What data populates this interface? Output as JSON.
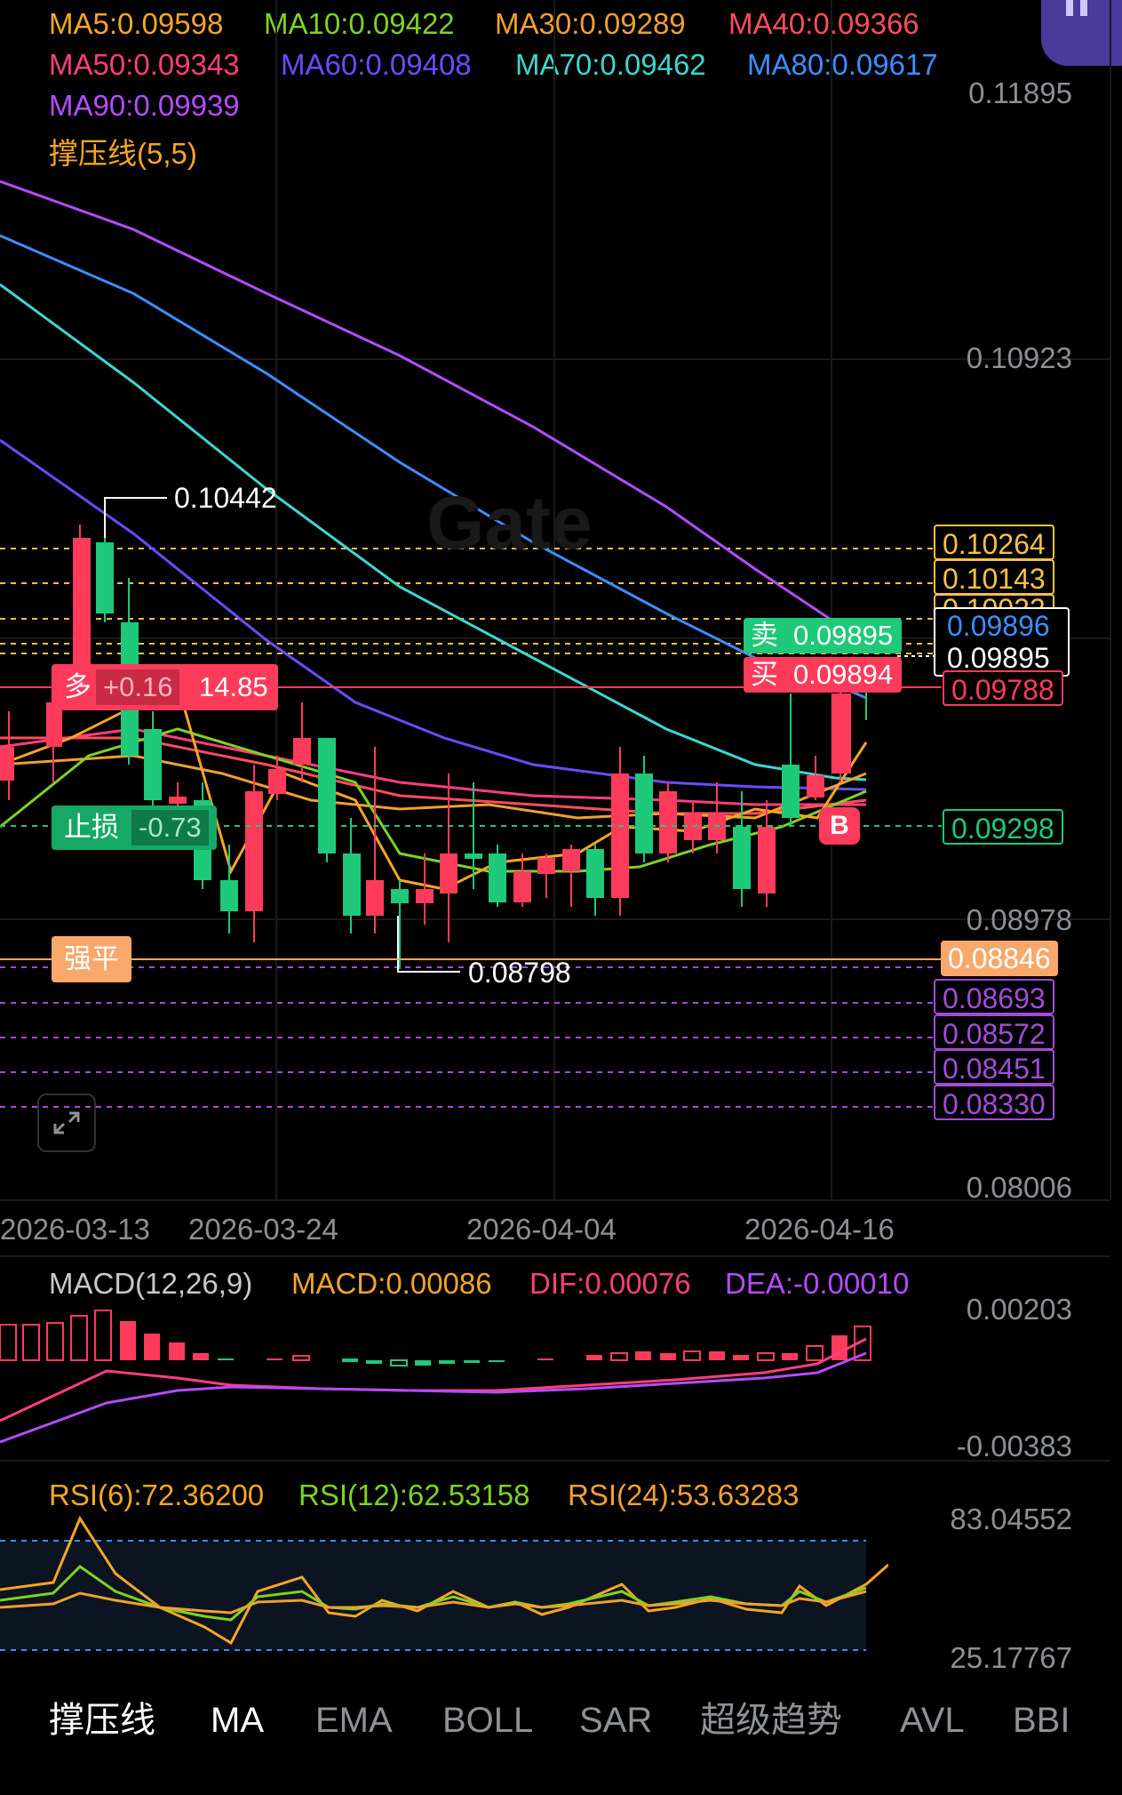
{
  "ma_legend": [
    {
      "label": "MA5:0.09598",
      "color": "#f5a623"
    },
    {
      "label": "MA10:0.09422",
      "color": "#7ed321"
    },
    {
      "label": "MA30:0.09289",
      "color": "#f0a030"
    },
    {
      "label": "MA40:0.09366",
      "color": "#ff4d5a"
    },
    {
      "label": "MA50:0.09343",
      "color": "#ff3d7f"
    },
    {
      "label": "MA60:0.09408",
      "color": "#6a4cff"
    },
    {
      "label": "MA70:0.09462",
      "color": "#3ed6d0"
    },
    {
      "label": "MA80:0.09617",
      "color": "#3b8fff"
    },
    {
      "label": "MA90:0.09939",
      "color": "#b44cff"
    },
    {
      "label": "撑压线(5,5)",
      "color": "#f5a623"
    }
  ],
  "price_axis": [
    "0.11895",
    "0.10923",
    "0.08978",
    "0.08006"
  ],
  "date_axis": [
    "2026-03-13",
    "2026-03-24",
    "2026-04-04",
    "2026-04-16"
  ],
  "annotations": {
    "high": "0.10442",
    "low": "0.08798"
  },
  "watermark": "Gate",
  "levels": {
    "resistance": [
      "0.10264",
      "0.10143",
      "0.10022"
    ],
    "last_blue": "0.09896",
    "last_white": "0.09895",
    "position_price": "0.09788",
    "stop_price": "0.09298",
    "liquidation_price": "0.08846",
    "support": [
      "0.08693",
      "0.08572",
      "0.08451",
      "0.08330"
    ]
  },
  "orderbook": {
    "sell_label": "卖",
    "sell_price": "0.09895",
    "buy_label": "买",
    "buy_price": "0.09894"
  },
  "position": {
    "side": "多",
    "pnl": "+0.16",
    "size": "14.85"
  },
  "stop_loss": {
    "label": "止损",
    "value": "-0.73"
  },
  "liquidation": {
    "label": "强平"
  },
  "buy_marker": "B",
  "macd": {
    "title": "MACD(12,26,9)",
    "macd": "MACD:0.00086",
    "dif": "DIF:0.00076",
    "dea": "DEA:-0.00010",
    "axis": [
      "0.00203",
      "-0.00383"
    ]
  },
  "rsi": {
    "rsi6": "RSI(6):72.36200",
    "rsi12": "RSI(12):62.53158",
    "rsi24": "RSI(24):53.63283",
    "axis": [
      "83.04552",
      "25.17767"
    ]
  },
  "tabs": [
    {
      "label": "撑压线",
      "active": false
    },
    {
      "label": "MA",
      "active": true
    },
    {
      "label": "EMA",
      "active": false
    },
    {
      "label": "BOLL",
      "active": false
    },
    {
      "label": "SAR",
      "active": false
    },
    {
      "label": "超级趋势",
      "active": false
    },
    {
      "label": "AVL",
      "active": false
    },
    {
      "label": "BBI",
      "active": false
    }
  ]
}
